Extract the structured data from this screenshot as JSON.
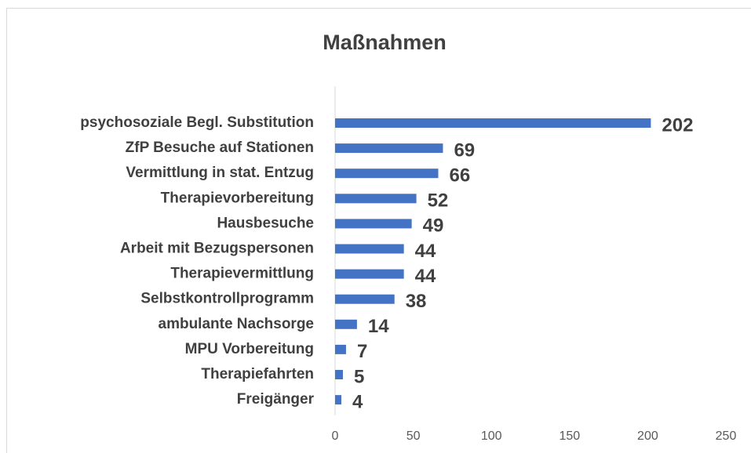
{
  "chart_data": {
    "type": "bar",
    "orientation": "horizontal",
    "title": "Maßnahmen",
    "categories": [
      "psychosoziale Begl. Substitution",
      "ZfP Besuche auf Stationen",
      "Vermittlung in stat. Entzug",
      "Therapievorbereitung",
      "Hausbesuche",
      "Arbeit mit Bezugspersonen",
      "Therapievermittlung",
      "Selbstkontrollprogramm",
      "ambulante Nachsorge",
      "MPU Vorbereitung",
      "Therapiefahrten",
      "Freigänger"
    ],
    "values": [
      202,
      69,
      66,
      52,
      49,
      44,
      44,
      38,
      14,
      7,
      5,
      4
    ],
    "color": "#4472c4",
    "xlim": [
      0,
      250
    ],
    "xticks": [
      0,
      50,
      100,
      150,
      200,
      250
    ],
    "grid": false
  }
}
